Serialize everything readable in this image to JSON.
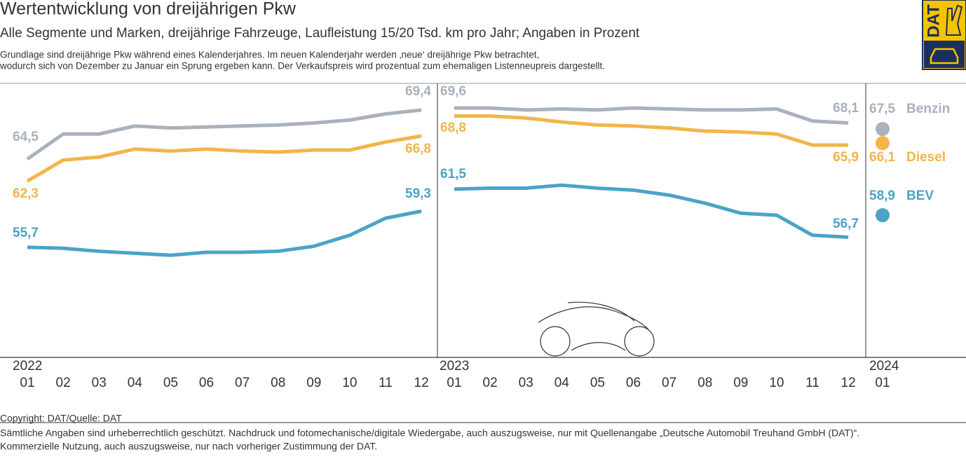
{
  "chart_data": {
    "type": "line",
    "title": "Wertentwicklung von dreijährigen Pkw",
    "subtitle": "Alle Segmente und Marken, dreijährige Fahrzeuge, Laufleistung 15/20 Tsd. km pro Jahr; Angaben in Prozent",
    "note": [
      "Grundlage sind dreijährige Pkw während eines Kalenderjahres. Im neuen Kalenderjahr werden ‚neue‘ dreijährige Pkw betrachtet,",
      "wodurch sich von Dezember zu Januar ein Sprung ergeben kann. Der Verkaufspreis wird prozentual zum ehemaligen Listenneupreis dargestellt."
    ],
    "logo": "DAT",
    "years": [
      "2022",
      "2023",
      "2024"
    ],
    "categories": [
      "01",
      "02",
      "03",
      "04",
      "05",
      "06",
      "07",
      "08",
      "09",
      "10",
      "11",
      "12",
      "01",
      "02",
      "03",
      "04",
      "05",
      "06",
      "07",
      "08",
      "09",
      "10",
      "11",
      "12",
      "01"
    ],
    "series": [
      {
        "name": "Benzin",
        "color": "#a9b1bd",
        "values": [
          64.5,
          67.0,
          67.0,
          67.8,
          67.6,
          67.7,
          67.8,
          67.9,
          68.1,
          68.4,
          69.0,
          69.4,
          69.6,
          69.6,
          69.4,
          69.5,
          69.4,
          69.6,
          69.5,
          69.4,
          69.4,
          69.5,
          68.3,
          68.1,
          67.5
        ],
        "value_labels": [
          "64,5",
          null,
          null,
          null,
          null,
          null,
          null,
          null,
          null,
          null,
          null,
          "69,4",
          "69,6",
          null,
          null,
          null,
          null,
          null,
          null,
          null,
          null,
          null,
          null,
          "68,1",
          "67,5"
        ]
      },
      {
        "name": "Diesel",
        "color": "#f2b54a",
        "values": [
          62.3,
          64.4,
          64.7,
          65.5,
          65.3,
          65.5,
          65.3,
          65.2,
          65.4,
          65.4,
          66.2,
          66.8,
          68.8,
          68.8,
          68.6,
          68.2,
          67.9,
          67.8,
          67.6,
          67.3,
          67.2,
          67.0,
          65.9,
          65.9,
          66.1
        ],
        "value_labels": [
          "62,3",
          null,
          null,
          null,
          null,
          null,
          null,
          null,
          null,
          null,
          null,
          "66,8",
          "68,8",
          null,
          null,
          null,
          null,
          null,
          null,
          null,
          null,
          null,
          null,
          "65,9",
          "66,1"
        ]
      },
      {
        "name": "BEV",
        "color": "#4ba3c7",
        "values": [
          55.7,
          55.6,
          55.3,
          55.1,
          54.9,
          55.2,
          55.2,
          55.3,
          55.8,
          56.9,
          58.6,
          59.3,
          61.5,
          61.6,
          61.6,
          61.9,
          61.6,
          61.4,
          60.9,
          60.1,
          59.1,
          58.9,
          56.9,
          56.7,
          58.9
        ],
        "value_labels": [
          "55,7",
          null,
          null,
          null,
          null,
          null,
          null,
          null,
          null,
          null,
          null,
          "59,3",
          "61,5",
          null,
          null,
          null,
          null,
          null,
          null,
          null,
          null,
          null,
          null,
          "56,7",
          "58,9"
        ]
      }
    ],
    "footer": [
      "Copyright: DAT/Quelle: DAT",
      "Sämtliche Angaben sind urheberrechtlich geschützt. Nachdruck und fotomechanische/digitale Wiedergabe, auch auszugsweise, nur mit Quellenangabe „Deutsche Automobil Treuhand GmbH (DAT)“.",
      "Kommerzielle Nutzung, auch auszugsweise, nur nach vorheriger Zustimmung der DAT."
    ]
  }
}
